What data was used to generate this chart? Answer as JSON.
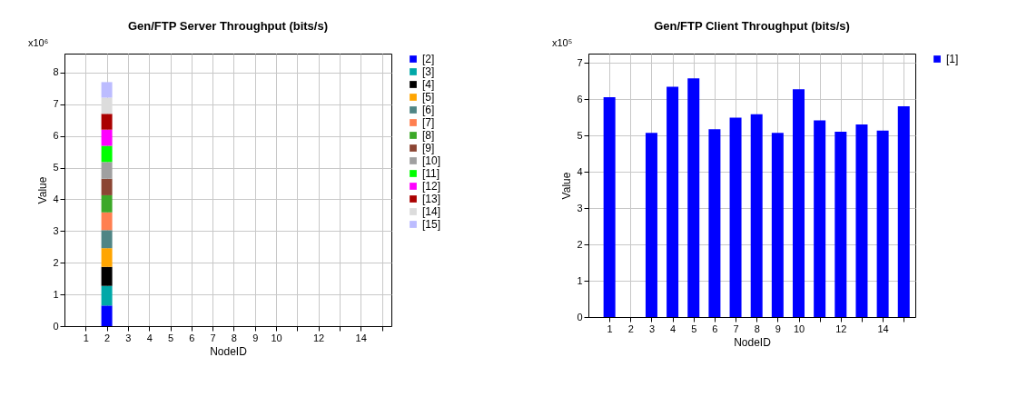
{
  "chart_data": [
    {
      "type": "bar",
      "title": "Gen/FTP Server   Throughput (bits/s)",
      "xlabel": "NodeID",
      "ylabel": "Value",
      "annotations": [
        "x10⁶"
      ],
      "stacked": true,
      "grid": true,
      "legend": "right",
      "x": [
        2
      ],
      "xlim": [
        0,
        15.45
      ],
      "xticks": [
        1,
        2,
        3,
        4,
        5,
        6,
        7,
        8,
        9,
        10,
        {
          "value": 11,
          "label": null
        },
        12,
        {
          "value": 13,
          "label": null
        },
        14,
        {
          "value": 15,
          "label": null
        }
      ],
      "ylim": [
        0,
        8.6
      ],
      "yticks": [
        0,
        1,
        2,
        3,
        4,
        5,
        6,
        7,
        8
      ],
      "series": [
        {
          "name": "[2]",
          "color": "#0000ff",
          "values": [
            0.65
          ]
        },
        {
          "name": "[3]",
          "color": "#00a8a8",
          "values": [
            0.62
          ]
        },
        {
          "name": "[4]",
          "color": "#000000",
          "values": [
            0.6
          ]
        },
        {
          "name": "[5]",
          "color": "#ffa500",
          "values": [
            0.59
          ]
        },
        {
          "name": "[6]",
          "color": "#4f8585",
          "values": [
            0.57
          ]
        },
        {
          "name": "[7]",
          "color": "#ff7f50",
          "values": [
            0.56
          ]
        },
        {
          "name": "[8]",
          "color": "#3ca828",
          "values": [
            0.54
          ]
        },
        {
          "name": "[9]",
          "color": "#8b4533",
          "values": [
            0.52
          ]
        },
        {
          "name": "[10]",
          "color": "#a0a0a0",
          "values": [
            0.53
          ]
        },
        {
          "name": "[11]",
          "color": "#00ff00",
          "values": [
            0.51
          ]
        },
        {
          "name": "[12]",
          "color": "#ff00ff",
          "values": [
            0.51
          ]
        },
        {
          "name": "[13]",
          "color": "#aa0000",
          "values": [
            0.5
          ]
        },
        {
          "name": "[14]",
          "color": "#dcdcdc",
          "values": [
            0.51
          ]
        },
        {
          "name": "[15]",
          "color": "#bcbcff",
          "values": [
            0.49
          ]
        }
      ]
    },
    {
      "type": "bar",
      "title": "Gen/FTP Client   Throughput (bits/s)",
      "xlabel": "NodeID",
      "ylabel": "Value",
      "annotations": [
        "x10⁵"
      ],
      "grid": true,
      "legend": "top right",
      "x": [
        1,
        3,
        4,
        5,
        6,
        7,
        8,
        9,
        10,
        11,
        12,
        13,
        14,
        15
      ],
      "xlim": [
        0,
        15.55
      ],
      "xticks": [
        1,
        2,
        3,
        4,
        5,
        6,
        7,
        8,
        9,
        10,
        {
          "value": 11,
          "label": null
        },
        12,
        {
          "value": 13,
          "label": null
        },
        14,
        {
          "value": 15,
          "label": null
        }
      ],
      "ylim": [
        0,
        7.25
      ],
      "yticks": [
        0,
        1,
        2,
        3,
        4,
        5,
        6,
        7
      ],
      "series": [
        {
          "name": "[1]",
          "color": "#0000ff",
          "values": [
            6.05,
            5.07,
            6.34,
            6.57,
            5.17,
            5.49,
            5.58,
            5.07,
            6.27,
            5.41,
            5.1,
            5.3,
            5.13,
            5.8
          ]
        }
      ]
    }
  ]
}
